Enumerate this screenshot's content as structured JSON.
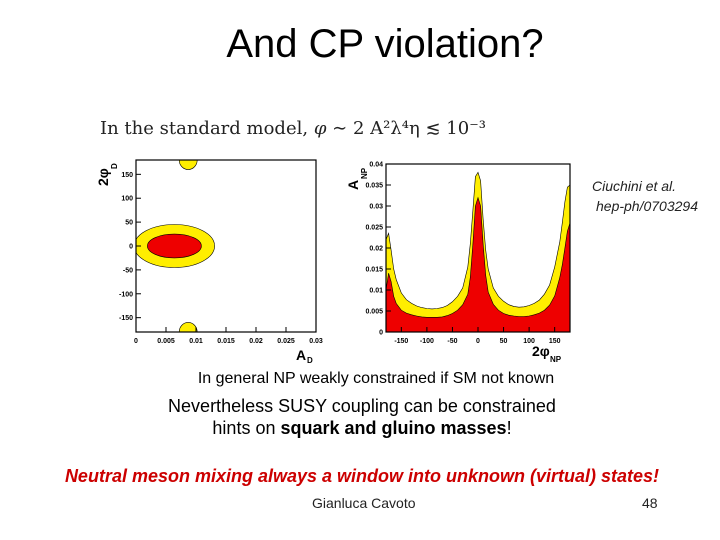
{
  "slide": {
    "title": "And CP violation?",
    "formula_prefix": "In the standard model,",
    "formula_phi": "φ",
    "formula_expr": "∼ 2 A²λ⁴η ≲ 10⁻³",
    "reference_author": "Ciuchini et al.",
    "reference_arxiv": "hep-ph/0703294",
    "line1": "In general NP weakly constrained if SM not known",
    "line2": "Nevertheless SUSY coupling can be constrained",
    "line3_prefix": "hints on",
    "line3_bold": "squark and gluino  masses",
    "line3_suffix": "!",
    "banner": "Neutral meson mixing always a window into unknown (virtual) states!",
    "footer_author": "Gianluca Cavoto",
    "footer_page": "48"
  },
  "chart_data": [
    {
      "type": "contour",
      "xlabel": "A",
      "xlabel_sub": "D",
      "ylabel": "2φ",
      "ylabel_sub": "D",
      "xlim": [
        0,
        0.03
      ],
      "ylim": [
        -180,
        180
      ],
      "xticks": [
        0,
        0.005,
        0.01,
        0.015,
        0.02,
        0.025,
        0.03
      ],
      "xtick_labels": [
        "0",
        "0.005",
        "0.01",
        "0.015",
        "0.02",
        "0.025",
        "0.03"
      ],
      "yticks": [
        150,
        100,
        50,
        0,
        -50,
        -100,
        -150
      ],
      "ytick_labels": [
        "150",
        "100",
        "50",
        "0",
        "-50",
        "-100",
        "-150"
      ],
      "regions": [
        {
          "level": "outer",
          "color": "#ffee00",
          "center": [
            0.0064,
            0
          ],
          "half_width": 0.0067,
          "half_height": 45
        },
        {
          "level": "inner",
          "color": "#ee0000",
          "center": [
            0.0064,
            0
          ],
          "half_width": 0.0045,
          "half_height": 25
        },
        {
          "level": "outer",
          "color": "#ffee00",
          "center": [
            0.0087,
            180
          ],
          "half_width": 0.0015,
          "half_height": 20
        },
        {
          "level": "outer",
          "color": "#ffee00",
          "center": [
            0.0087,
            -180
          ],
          "half_width": 0.0015,
          "half_height": 20
        }
      ]
    },
    {
      "type": "area",
      "xlabel": "2φ",
      "xlabel_sub": "NP",
      "ylabel": "A",
      "ylabel_sub": "NP",
      "xlim": [
        -180,
        180
      ],
      "ylim": [
        0,
        0.04
      ],
      "xticks": [
        -150,
        -100,
        -50,
        0,
        50,
        100,
        150
      ],
      "xtick_labels": [
        "-150",
        "-100",
        "-50",
        "0",
        "50",
        "100",
        "150"
      ],
      "yticks": [
        0,
        0.005,
        0.01,
        0.015,
        0.02,
        0.025,
        0.03,
        0.035,
        0.04
      ],
      "ytick_labels": [
        "0",
        "0.005",
        "0.01",
        "0.015",
        "0.02",
        "0.025",
        "0.03",
        "0.035",
        "0.04"
      ],
      "series": [
        {
          "color": "#ffee00",
          "x": [
            -180,
            -175,
            -170,
            -165,
            -160,
            -150,
            -140,
            -130,
            -120,
            -110,
            -100,
            -90,
            -80,
            -70,
            -60,
            -50,
            -40,
            -30,
            -20,
            -15,
            -10,
            -5,
            0,
            5,
            10,
            15,
            20,
            30,
            40,
            50,
            60,
            70,
            80,
            90,
            100,
            110,
            120,
            130,
            140,
            150,
            160,
            165,
            170,
            175,
            180
          ],
          "y": [
            0.022,
            0.0235,
            0.0195,
            0.015,
            0.0125,
            0.0093,
            0.0077,
            0.0068,
            0.0062,
            0.0058,
            0.0056,
            0.0055,
            0.0056,
            0.0058,
            0.0063,
            0.0072,
            0.0085,
            0.0105,
            0.0155,
            0.021,
            0.029,
            0.037,
            0.038,
            0.036,
            0.027,
            0.0195,
            0.015,
            0.0105,
            0.0085,
            0.0073,
            0.0065,
            0.0061,
            0.0059,
            0.006,
            0.0063,
            0.0068,
            0.0076,
            0.009,
            0.0112,
            0.0155,
            0.0215,
            0.026,
            0.031,
            0.0345,
            0.035
          ]
        },
        {
          "color": "#ee0000",
          "x": [
            -180,
            -175,
            -170,
            -165,
            -160,
            -150,
            -140,
            -130,
            -120,
            -110,
            -100,
            -90,
            -80,
            -70,
            -60,
            -50,
            -40,
            -30,
            -20,
            -15,
            -10,
            -5,
            0,
            5,
            10,
            15,
            20,
            30,
            40,
            50,
            60,
            70,
            80,
            90,
            100,
            110,
            120,
            130,
            140,
            150,
            160,
            165,
            170,
            175,
            180
          ],
          "y": [
            0.01,
            0.014,
            0.012,
            0.0085,
            0.0068,
            0.0052,
            0.0045,
            0.0041,
            0.0038,
            0.0036,
            0.0035,
            0.0035,
            0.0035,
            0.0036,
            0.0039,
            0.0044,
            0.0052,
            0.0065,
            0.009,
            0.013,
            0.021,
            0.03,
            0.032,
            0.03,
            0.021,
            0.0135,
            0.0095,
            0.0066,
            0.0052,
            0.0044,
            0.004,
            0.0038,
            0.0037,
            0.0037,
            0.0038,
            0.0041,
            0.0045,
            0.0052,
            0.0064,
            0.0086,
            0.013,
            0.016,
            0.02,
            0.024,
            0.026
          ]
        }
      ]
    }
  ]
}
